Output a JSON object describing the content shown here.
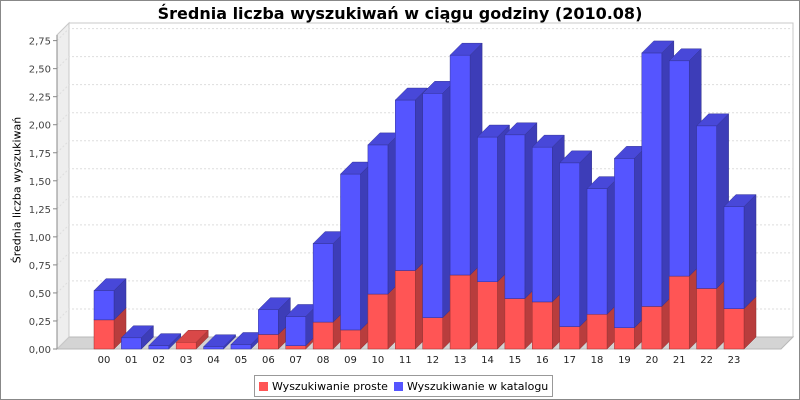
{
  "chart_data": {
    "type": "bar",
    "stacked": true,
    "style": "3d",
    "title": "Średnia liczba wyszukiwań w ciągu godziny (2010.08)",
    "xlabel": "",
    "ylabel": "Średnia liczba wyszukiwań",
    "ylim": [
      0,
      2.8
    ],
    "yticks": [
      "0,00",
      "0,25",
      "0,50",
      "0,75",
      "1,00",
      "1,25",
      "1,50",
      "1,75",
      "2,00",
      "2,25",
      "2,50",
      "2,75"
    ],
    "categories": [
      "00",
      "01",
      "02",
      "03",
      "04",
      "05",
      "06",
      "07",
      "08",
      "09",
      "10",
      "11",
      "12",
      "13",
      "14",
      "15",
      "16",
      "17",
      "18",
      "19",
      "20",
      "21",
      "22",
      "23"
    ],
    "series": [
      {
        "name": "Wyszukiwanie proste",
        "color": "#ff5555",
        "values": [
          0.26,
          0.0,
          0.0,
          0.06,
          0.0,
          0.0,
          0.13,
          0.03,
          0.24,
          0.17,
          0.49,
          0.7,
          0.28,
          0.66,
          0.6,
          0.45,
          0.42,
          0.2,
          0.31,
          0.19,
          0.38,
          0.65,
          0.54,
          0.36
        ]
      },
      {
        "name": "Wyszukiwanie w katalogu",
        "color": "#5555ff",
        "values": [
          0.26,
          0.1,
          0.03,
          0.0,
          0.02,
          0.04,
          0.22,
          0.26,
          0.7,
          1.39,
          1.33,
          1.52,
          2.0,
          1.96,
          1.29,
          1.46,
          1.38,
          1.46,
          1.12,
          1.51,
          2.26,
          1.92,
          1.45,
          0.91
        ]
      }
    ],
    "legend": "bottom",
    "grid": true
  }
}
